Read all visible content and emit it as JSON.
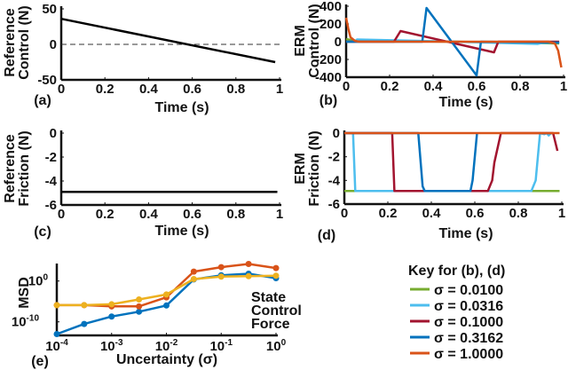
{
  "legend_key": {
    "title": "Key for (b), (d)",
    "entries": [
      {
        "label": "σ = 0.0100",
        "color": "#77ac30"
      },
      {
        "label": "σ = 0.0316",
        "color": "#4dbeee"
      },
      {
        "label": "σ = 0.1000",
        "color": "#a2142f"
      },
      {
        "label": "σ = 0.3162",
        "color": "#0072bd"
      },
      {
        "label": "σ = 1.0000",
        "color": "#d95319"
      }
    ]
  },
  "chart_data": [
    {
      "panel": "(a)",
      "type": "line",
      "xlabel": "Time (s)",
      "ylabel": [
        "Reference",
        "Control (N)"
      ],
      "xlim": [
        0,
        1
      ],
      "ylim": [
        -50,
        50
      ],
      "xticks": [
        {
          "v": 0,
          "label": "0"
        },
        {
          "v": 0.2,
          "label": "0.2"
        },
        {
          "v": 0.4,
          "label": "0.4"
        },
        {
          "v": 0.6,
          "label": "0.6"
        },
        {
          "v": 0.8,
          "label": "0.8"
        },
        {
          "v": 1,
          "label": "1"
        }
      ],
      "yticks": [
        {
          "v": 50,
          "label": "50"
        },
        {
          "v": 0,
          "label": "0"
        },
        {
          "v": -50,
          "label": "-50"
        }
      ],
      "reference_line": {
        "y": 0,
        "style": "dashed"
      },
      "series": [
        {
          "color": "#000000",
          "x": [
            0,
            0.98
          ],
          "y": [
            36,
            -25
          ]
        }
      ]
    },
    {
      "panel": "(b)",
      "type": "line",
      "xlabel": "Time (s)",
      "ylabel": [
        "ERM",
        "Control (N)"
      ],
      "xlim": [
        0,
        1
      ],
      "ylim": [
        -400,
        400
      ],
      "xticks": [
        {
          "v": 0,
          "label": "0"
        },
        {
          "v": 0.2,
          "label": "0.2"
        },
        {
          "v": 0.4,
          "label": "0.4"
        },
        {
          "v": 0.6,
          "label": "0.6"
        },
        {
          "v": 0.8,
          "label": "0.8"
        },
        {
          "v": 1,
          "label": "1"
        }
      ],
      "yticks": [
        {
          "v": 400,
          "label": "400"
        },
        {
          "v": 200,
          "label": "200"
        },
        {
          "v": 0,
          "label": "0"
        },
        {
          "v": -200,
          "label": "-200"
        },
        {
          "v": -400,
          "label": "-400"
        }
      ],
      "series": [
        {
          "name": "σ = 0.0100",
          "color": "#77ac30",
          "x": [
            0,
            0.02,
            0.05,
            0.5,
            0.98
          ],
          "y": [
            30,
            20,
            10,
            0,
            -20
          ]
        },
        {
          "name": "σ = 0.0316",
          "color": "#4dbeee",
          "x": [
            0,
            0.04,
            0.05,
            0.5,
            0.88,
            0.9,
            0.98
          ],
          "y": [
            0,
            0,
            25,
            0,
            -25,
            -15,
            -10
          ]
        },
        {
          "name": "σ = 0.1000",
          "color": "#a2142f",
          "x": [
            0,
            0.22,
            0.25,
            0.68,
            0.7,
            0.98
          ],
          "y": [
            0,
            0,
            120,
            -120,
            0,
            0
          ]
        },
        {
          "name": "σ = 0.3162",
          "color": "#0072bd",
          "x": [
            0,
            0.35,
            0.37,
            0.6,
            0.62,
            0.98
          ],
          "y": [
            0,
            0,
            380,
            -380,
            0,
            -10
          ]
        },
        {
          "name": "σ = 1.0000",
          "color": "#d95319",
          "x": [
            0,
            0.01,
            0.02,
            0.04,
            0.06,
            0.93,
            0.96,
            0.975,
            0.99
          ],
          "y": [
            270,
            150,
            50,
            10,
            0,
            0,
            -20,
            -100,
            -290
          ]
        }
      ]
    },
    {
      "panel": "(c)",
      "type": "line",
      "xlabel": "Time (s)",
      "ylabel": [
        "Reference",
        "Friction (N)"
      ],
      "xlim": [
        0,
        1
      ],
      "ylim": [
        -6,
        0
      ],
      "xticks": [
        {
          "v": 0,
          "label": "0"
        },
        {
          "v": 0.2,
          "label": "0.2"
        },
        {
          "v": 0.4,
          "label": "0.4"
        },
        {
          "v": 0.6,
          "label": "0.6"
        },
        {
          "v": 0.8,
          "label": "0.8"
        },
        {
          "v": 1,
          "label": "1"
        }
      ],
      "yticks": [
        {
          "v": 0,
          "label": "0"
        },
        {
          "v": -2,
          "label": "-2"
        },
        {
          "v": -4,
          "label": "-4"
        },
        {
          "v": -6,
          "label": "-6"
        }
      ],
      "series": [
        {
          "color": "#000000",
          "x": [
            0,
            0.99
          ],
          "y": [
            -4.9,
            -4.9
          ]
        }
      ]
    },
    {
      "panel": "(d)",
      "type": "line",
      "xlabel": "Time (s)",
      "ylabel": [
        "ERM",
        "Friction (N)"
      ],
      "xlim": [
        0,
        1
      ],
      "ylim": [
        -6,
        0
      ],
      "xticks": [
        {
          "v": 0,
          "label": "0"
        },
        {
          "v": 0.2,
          "label": "0.2"
        },
        {
          "v": 0.4,
          "label": "0.4"
        },
        {
          "v": 0.6,
          "label": "0.6"
        },
        {
          "v": 0.8,
          "label": "0.8"
        },
        {
          "v": 1,
          "label": "1"
        }
      ],
      "yticks": [
        {
          "v": 0,
          "label": "0"
        },
        {
          "v": -2,
          "label": "-2"
        },
        {
          "v": -4,
          "label": "-4"
        },
        {
          "v": -6,
          "label": "-6"
        }
      ],
      "series": [
        {
          "name": "σ = 0.0100",
          "color": "#77ac30",
          "x": [
            0,
            0.99
          ],
          "y": [
            -4.9,
            -4.9
          ]
        },
        {
          "name": "σ = 0.0316",
          "color": "#4dbeee",
          "x": [
            0,
            0.04,
            0.05,
            0.86,
            0.88,
            0.9,
            0.92,
            0.93,
            0.94,
            0.95
          ],
          "y": [
            0,
            0,
            -4.9,
            -4.9,
            -4,
            0,
            -0.1,
            0,
            -0.2,
            0
          ]
        },
        {
          "name": "σ = 0.1000",
          "color": "#a2142f",
          "x": [
            0,
            0.22,
            0.23,
            0.66,
            0.68,
            0.69,
            0.72,
            0.96,
            0.98
          ],
          "y": [
            0,
            0,
            -4.9,
            -4.9,
            -4,
            -2.5,
            0,
            0,
            -1.5
          ]
        },
        {
          "name": "σ = 0.3162",
          "color": "#0072bd",
          "x": [
            0,
            0.34,
            0.36,
            0.37,
            0.58,
            0.59,
            0.61
          ],
          "y": [
            0,
            0,
            -4.5,
            -4.9,
            -4.9,
            -4,
            0
          ]
        },
        {
          "name": "σ = 1.0000",
          "color": "#d95319",
          "x": [
            0,
            0.99
          ],
          "y": [
            0,
            0
          ]
        }
      ]
    },
    {
      "panel": "(e)",
      "type": "line",
      "log_x": true,
      "log_y": true,
      "xlabel": "Uncertainty (σ)",
      "ylabel": [
        "MSD"
      ],
      "xlim": [
        0.0001,
        1
      ],
      "ylim": [
        1e-13,
        10000.0
      ],
      "xticks": [
        {
          "v": 0.0001,
          "base": "10",
          "exp": "-4"
        },
        {
          "v": 0.001,
          "base": "10",
          "exp": "-3"
        },
        {
          "v": 0.01,
          "base": "10",
          "exp": "-2"
        },
        {
          "v": 0.1,
          "base": "10",
          "exp": "-1"
        },
        {
          "v": 1,
          "base": "10",
          "exp": "0"
        }
      ],
      "yticks": [
        {
          "v": 1,
          "base": "10",
          "exp": "0"
        },
        {
          "v": 1e-10,
          "base": "10",
          "exp": "-10"
        }
      ],
      "annotations": [
        "State",
        "Control",
        "Force"
      ],
      "x": [
        0.0001,
        0.000316,
        0.001,
        0.00316,
        0.01,
        0.0316,
        0.1,
        0.316,
        1
      ],
      "series": [
        {
          "color": "#0072bd",
          "y": [
            1e-13,
            3e-11,
            2e-09,
            3e-08,
            1e-06,
            2.5,
            25,
            60,
            5
          ]
        },
        {
          "color": "#d95319",
          "y": [
            1.2e-06,
            1.2e-06,
            6e-07,
            6e-07,
            0.0001,
            200,
            2500,
            15000,
            1500
          ]
        },
        {
          "color": "#edb120",
          "y": [
            1.2e-06,
            1.2e-06,
            2e-06,
            3e-05,
            0.0005,
            3,
            12,
            15,
            20
          ]
        }
      ]
    }
  ]
}
